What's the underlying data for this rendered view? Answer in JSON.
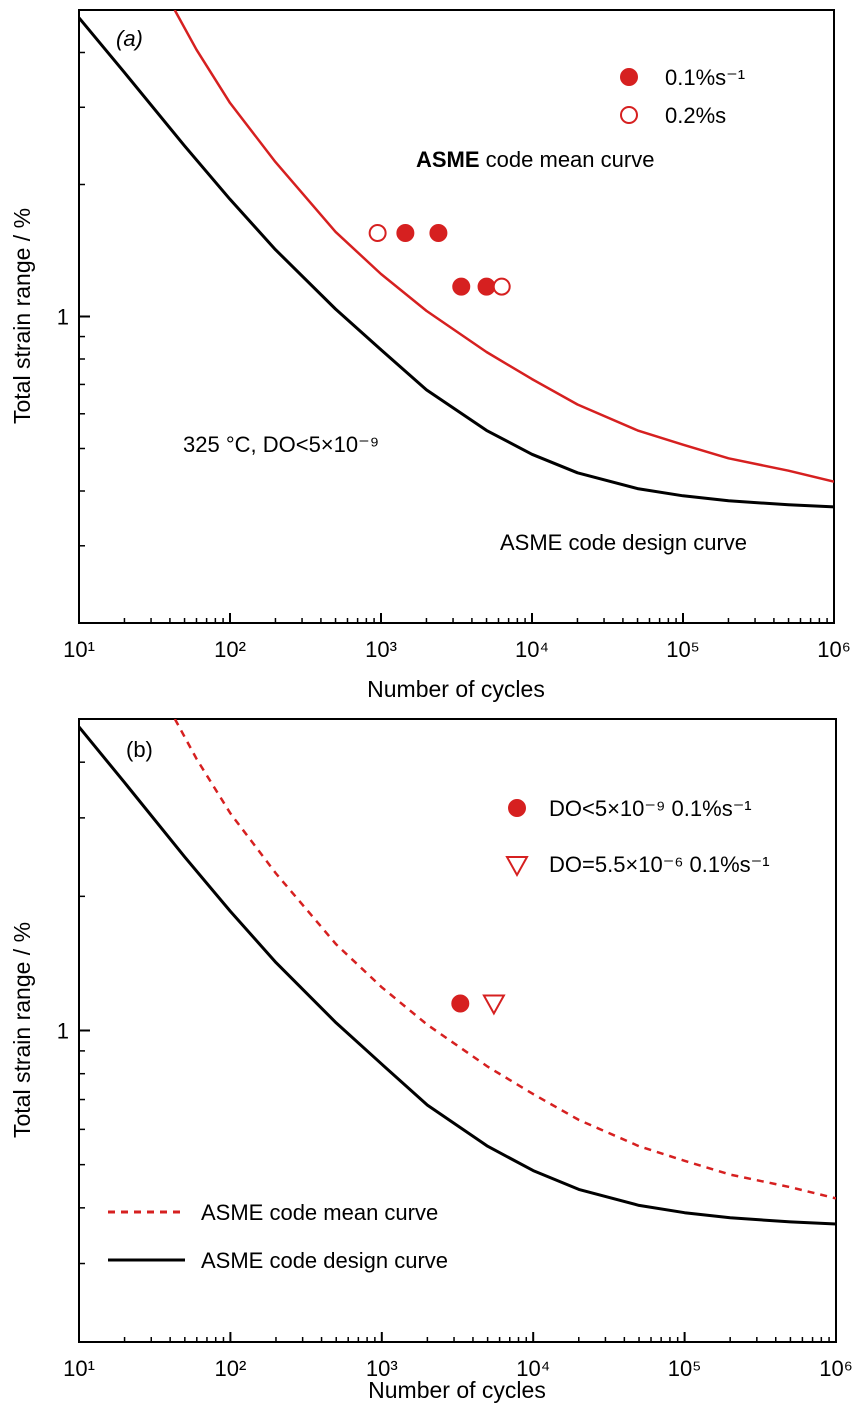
{
  "chart_data": [
    {
      "type": "scatter",
      "panel_label": "(a)",
      "xlabel": "Number of cycles",
      "ylabel": "Total strain range / %",
      "xscale": "log",
      "yscale": "log",
      "xlim": [
        10,
        1000000
      ],
      "ylim": [
        0.2,
        5
      ],
      "x_tick_values": [
        10,
        100,
        1000,
        10000,
        100000,
        1000000
      ],
      "x_tick_labels": [
        "10¹",
        "10²",
        "10³",
        "10⁴",
        "10⁵",
        "10⁶"
      ],
      "y_tick_values": [
        1
      ],
      "y_tick_labels": [
        "1"
      ],
      "legend_position": "top-right",
      "curves": [
        {
          "name": "ASME code mean curve",
          "style": "solid",
          "color": "#d62020",
          "x": [
            43,
            60,
            100,
            200,
            500,
            1000,
            2000,
            5000,
            10000,
            20000,
            50000,
            100000,
            200000,
            500000,
            1000000
          ],
          "y": [
            5.0,
            4.06,
            3.07,
            2.25,
            1.56,
            1.25,
            1.03,
            0.83,
            0.72,
            0.63,
            0.55,
            0.51,
            0.475,
            0.445,
            0.42
          ]
        },
        {
          "name": "ASME code design curve",
          "style": "solid",
          "color": "#000000",
          "x": [
            10,
            20,
            50,
            100,
            200,
            500,
            1000,
            2000,
            5000,
            10000,
            20000,
            50000,
            100000,
            200000,
            500000,
            1000000
          ],
          "y": [
            4.8,
            3.6,
            2.45,
            1.85,
            1.42,
            1.04,
            0.84,
            0.68,
            0.55,
            0.485,
            0.44,
            0.405,
            0.39,
            0.38,
            0.372,
            0.368
          ]
        }
      ],
      "series": [
        {
          "name": "0.1%s⁻¹",
          "marker": "filled-circle",
          "color": "#d62020",
          "x": [
            1450,
            2400,
            3400,
            5000
          ],
          "y": [
            1.55,
            1.55,
            1.17,
            1.17
          ]
        },
        {
          "name": "0.2%s",
          "marker": "open-circle",
          "color": "#d62020",
          "x": [
            950,
            6300
          ],
          "y": [
            1.55,
            1.17
          ]
        }
      ],
      "legend": [
        {
          "label": "0.1%s⁻¹",
          "marker": "filled-circle"
        },
        {
          "label": "0.2%s",
          "marker": "open-circle"
        }
      ],
      "annotations": [
        {
          "text": "ASME code mean curve",
          "bold_prefix": "ASME",
          "rest": " code mean curve"
        },
        {
          "text": "325 °C, DO<5×10⁻⁹"
        },
        {
          "text": "ASME code design curve"
        }
      ]
    },
    {
      "type": "scatter",
      "panel_label": "(b)",
      "xlabel": "Number of cycles",
      "ylabel": "Total strain range / %",
      "xscale": "log",
      "yscale": "log",
      "xlim": [
        10,
        1000000
      ],
      "ylim": [
        0.2,
        5
      ],
      "x_tick_values": [
        10,
        100,
        1000,
        10000,
        100000,
        1000000
      ],
      "x_tick_labels": [
        "10¹",
        "10²",
        "10³",
        "10⁴",
        "10⁵",
        "10⁶"
      ],
      "y_tick_values": [
        1
      ],
      "y_tick_labels": [
        "1"
      ],
      "legend_position": "top-right",
      "curves": [
        {
          "name": "ASME code mean curve",
          "style": "dashed",
          "color": "#d62020",
          "x": [
            43,
            60,
            100,
            200,
            500,
            1000,
            2000,
            5000,
            10000,
            20000,
            50000,
            100000,
            200000,
            500000,
            1000000
          ],
          "y": [
            5.0,
            4.06,
            3.07,
            2.25,
            1.56,
            1.25,
            1.03,
            0.83,
            0.72,
            0.63,
            0.55,
            0.51,
            0.475,
            0.445,
            0.42
          ]
        },
        {
          "name": "ASME code design curve",
          "style": "solid",
          "color": "#000000",
          "x": [
            10,
            20,
            50,
            100,
            200,
            500,
            1000,
            2000,
            5000,
            10000,
            20000,
            50000,
            100000,
            200000,
            500000,
            1000000
          ],
          "y": [
            4.8,
            3.6,
            2.45,
            1.85,
            1.42,
            1.04,
            0.84,
            0.68,
            0.55,
            0.485,
            0.44,
            0.405,
            0.39,
            0.38,
            0.372,
            0.368
          ]
        }
      ],
      "series": [
        {
          "name": "DO<5×10⁻⁹ 0.1%s⁻¹",
          "marker": "filled-circle",
          "color": "#d62020",
          "x": [
            3300
          ],
          "y": [
            1.15
          ]
        },
        {
          "name": "DO=5.5×10⁻⁶ 0.1%s⁻¹",
          "marker": "open-triangle-down",
          "color": "#d62020",
          "x": [
            5500
          ],
          "y": [
            1.15
          ]
        }
      ],
      "legend": [
        {
          "label": "DO<5×10⁻⁹  0.1%s⁻¹",
          "marker": "filled-circle"
        },
        {
          "label": "DO=5.5×10⁻⁶  0.1%s⁻¹",
          "marker": "open-triangle-down"
        },
        {
          "label": "ASME code mean curve",
          "marker": "dashed-line"
        },
        {
          "label": "ASME code design curve",
          "marker": "solid-line"
        }
      ],
      "annotations": []
    }
  ]
}
